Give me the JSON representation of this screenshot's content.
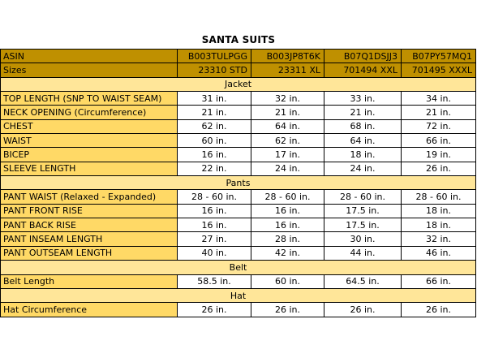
{
  "title": "SANTA SUITS",
  "header_rows": [
    {
      "label": "ASIN",
      "values": [
        "B003TULPGG",
        "B003JP8T6K",
        "B07Q1DSJJ3",
        "B07PY57MQ1"
      ]
    },
    {
      "label": "Sizes",
      "values": [
        "23310 STD",
        "23311 XL",
        "701494 XXL",
        "701495 XXXL"
      ]
    }
  ],
  "sections": [
    {
      "name": "Jacket",
      "rows": [
        {
          "label": "TOP LENGTH (SNP TO WAIST SEAM)",
          "values": [
            "31 in.",
            "32 in.",
            "33 in.",
            "34 in."
          ]
        },
        {
          "label": "NECK OPENING (Circumference)",
          "values": [
            "21 in.",
            "21 in.",
            "21 in.",
            "21 in."
          ]
        },
        {
          "label": "CHEST",
          "values": [
            "62 in.",
            "64 in.",
            "68 in.",
            "72 in."
          ]
        },
        {
          "label": "WAIST",
          "values": [
            "60 in.",
            "62 in.",
            "64 in.",
            "66 in."
          ]
        },
        {
          "label": "BICEP",
          "values": [
            "16 in.",
            "17 in.",
            "18 in.",
            "19 in."
          ]
        },
        {
          "label": "SLEEVE LENGTH",
          "values": [
            "22 in.",
            "24 in.",
            "24 in.",
            "26 in."
          ]
        }
      ]
    },
    {
      "name": "Pants",
      "rows": [
        {
          "label": "PANT WAIST (Relaxed - Expanded)",
          "values": [
            "28 - 60 in.",
            "28 - 60 in.",
            "28 - 60 in.",
            "28 - 60 in."
          ]
        },
        {
          "label": "PANT FRONT RISE",
          "values": [
            "16 in.",
            "16 in.",
            "17.5 in.",
            "18 in."
          ]
        },
        {
          "label": "PANT BACK RISE",
          "values": [
            "16 in.",
            "16 in.",
            "17.5 in.",
            "18 in."
          ]
        },
        {
          "label": "PANT INSEAM LENGTH",
          "values": [
            "27 in.",
            "28 in.",
            "30 in.",
            "32 in."
          ]
        },
        {
          "label": "PANT OUTSEAM LENGTH",
          "values": [
            "40 in.",
            "42 in.",
            "44 in.",
            "46 in."
          ]
        }
      ]
    },
    {
      "name": "Belt",
      "rows": [
        {
          "label": "Belt Length",
          "values": [
            "58.5 in.",
            "60 in.",
            "64.5 in.",
            "66 in."
          ]
        }
      ]
    },
    {
      "name": "Hat",
      "rows": [
        {
          "label": "Hat Circumference",
          "values": [
            "26 in.",
            "26 in.",
            "26 in.",
            "26 in."
          ]
        }
      ]
    }
  ],
  "colors": {
    "header_fill": "#bf9000",
    "section_fill": "#ffe699",
    "label_fill": "#ffd966",
    "value_fill": "#ffffff"
  }
}
